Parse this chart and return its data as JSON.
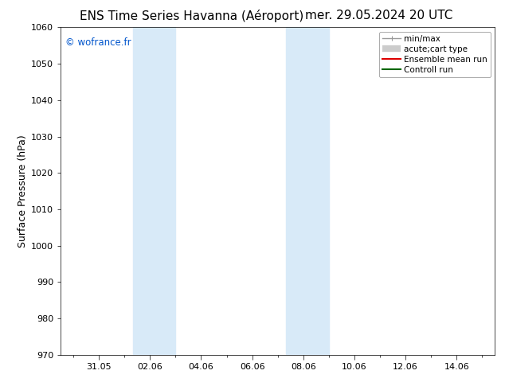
{
  "title_left": "ENS Time Series Havanna (Aéroport)",
  "title_right": "mer. 29.05.2024 20 UTC",
  "ylabel": "Surface Pressure (hPa)",
  "ylim": [
    970,
    1060
  ],
  "yticks": [
    970,
    980,
    990,
    1000,
    1010,
    1020,
    1030,
    1040,
    1050,
    1060
  ],
  "xtick_labels": [
    "31.05",
    "02.06",
    "04.06",
    "06.06",
    "08.06",
    "10.06",
    "12.06",
    "14.06"
  ],
  "xtick_positions": [
    2,
    4,
    6,
    8,
    10,
    12,
    14,
    16
  ],
  "xlim": [
    0.5,
    17.5
  ],
  "watermark": "© wofrance.fr",
  "watermark_color": "#0055cc",
  "bg_color": "#ffffff",
  "plot_bg_color": "#ffffff",
  "shaded_bands": [
    {
      "x_start": 3.33,
      "x_end": 5.0,
      "color": "#d8eaf8"
    },
    {
      "x_start": 9.33,
      "x_end": 11.0,
      "color": "#d8eaf8"
    }
  ],
  "legend_entries": [
    {
      "label": "min/max",
      "color": "#999999",
      "lw": 1.0
    },
    {
      "label": "acute;cart type",
      "color": "#cccccc",
      "lw": 6
    },
    {
      "label": "Ensemble mean run",
      "color": "#dd0000",
      "lw": 1.5
    },
    {
      "label": "Controll run",
      "color": "#006600",
      "lw": 1.5
    }
  ],
  "title_fontsize": 11,
  "tick_fontsize": 8,
  "ylabel_fontsize": 9,
  "legend_fontsize": 7.5
}
